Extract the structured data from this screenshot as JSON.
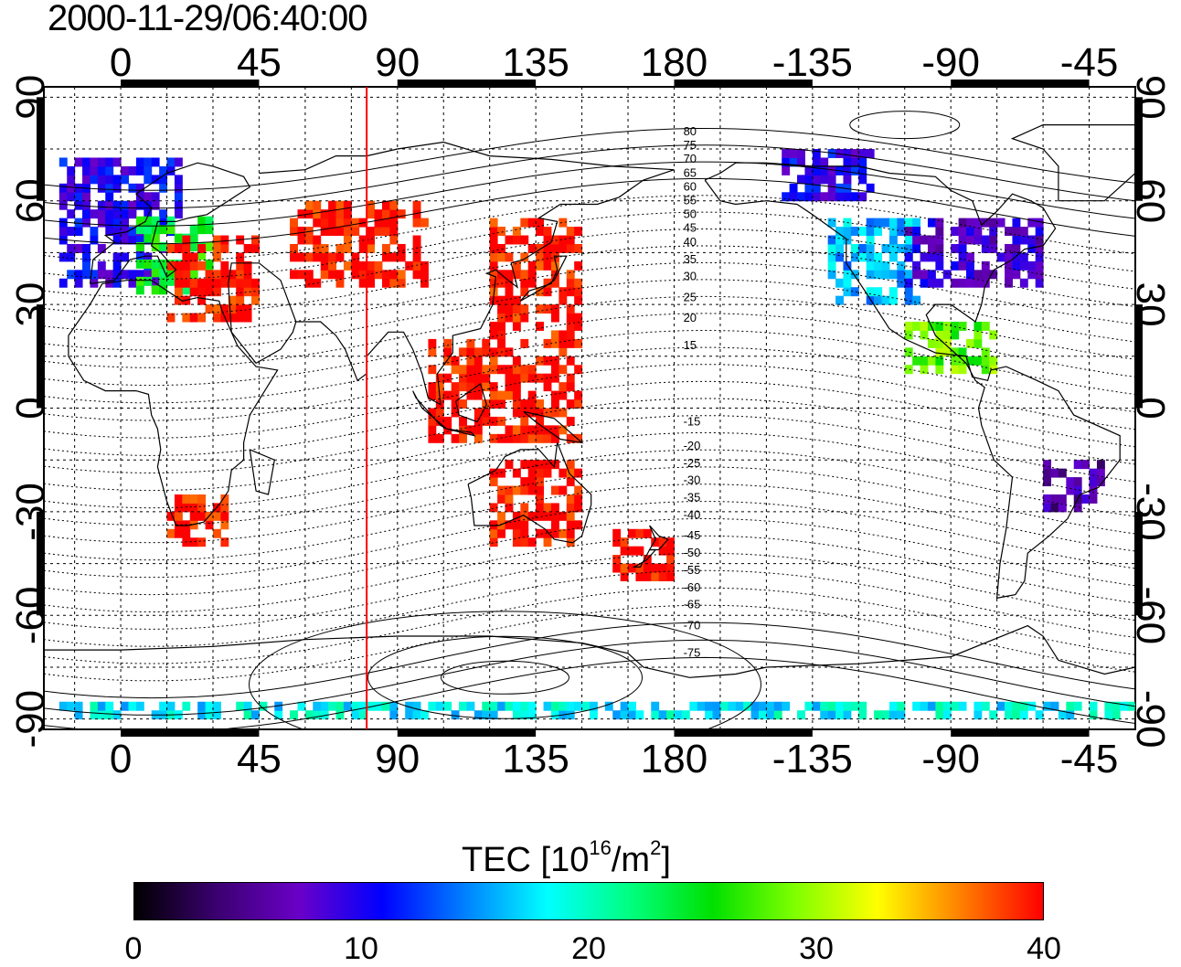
{
  "title": "2000-11-29/06:40:00",
  "map": {
    "x_axis": {
      "top_labels": [
        "0",
        "45",
        "90",
        "135",
        "180",
        "-135",
        "-90",
        "-45"
      ],
      "bottom_labels": [
        "0",
        "45",
        "90",
        "135",
        "180",
        "-135",
        "-90",
        "-45"
      ],
      "values": [
        0,
        45,
        90,
        135,
        180,
        225,
        270,
        315
      ]
    },
    "y_axis": {
      "left_labels": [
        "90",
        "60",
        "30",
        "0",
        "-30",
        "-60",
        "-90"
      ],
      "right_labels": [
        "90",
        "60",
        "30",
        "0",
        "-30",
        "-60",
        "-90"
      ],
      "values": [
        90,
        60,
        30,
        0,
        -30,
        -60,
        -90
      ]
    },
    "lon_range": [
      -25,
      330
    ],
    "lat_range": [
      -93,
      93
    ],
    "gridlines": true,
    "marker_line_longitude": 80,
    "marker_line_color": "#ff0000",
    "contour_labels": [
      "80",
      "75",
      "70",
      "65",
      "60",
      "55",
      "50",
      "45",
      "40",
      "35",
      "30",
      "25",
      "20",
      "15",
      "-15",
      "-20",
      "-25",
      "-30",
      "-35",
      "-40",
      "-45",
      "-50",
      "-55",
      "-60",
      "-65",
      "-70",
      "-75"
    ]
  },
  "colorbar": {
    "title_prefix": "TEC  [10",
    "title_exp1": "16",
    "title_mid": "/m",
    "title_exp2": "2",
    "title_suffix": "]",
    "min": 0,
    "max": 40,
    "tick_labels": [
      "0",
      "10",
      "20",
      "30",
      "40"
    ],
    "colors": [
      "#000000",
      "#3b0070",
      "#6a00c8",
      "#0000ff",
      "#0080ff",
      "#00ffff",
      "#00ff80",
      "#00e000",
      "#80ff00",
      "#ffff00",
      "#ff8000",
      "#ff0000"
    ]
  },
  "chart_data": {
    "type": "heatmap",
    "title": "2000-11-29/06:40:00",
    "xlabel": "",
    "ylabel": "",
    "xlim": [
      -25,
      330
    ],
    "ylim": [
      -93,
      93
    ],
    "value_label": "TEC  [10^16/m^2]",
    "value_range": [
      0,
      40
    ],
    "regions": [
      {
        "lon": [
          -20,
          20
        ],
        "lat": [
          35,
          72
        ],
        "tec": 10
      },
      {
        "lon": [
          5,
          30
        ],
        "lat": [
          33,
          55
        ],
        "tec": 25
      },
      {
        "lon": [
          15,
          45
        ],
        "lat": [
          25,
          50
        ],
        "tec": 40
      },
      {
        "lon": [
          55,
          100
        ],
        "lat": [
          35,
          60
        ],
        "tec": 40
      },
      {
        "lon": [
          120,
          150
        ],
        "lat": [
          20,
          55
        ],
        "tec": 40
      },
      {
        "lon": [
          100,
          150
        ],
        "lat": [
          -10,
          20
        ],
        "tec": 40
      },
      {
        "lon": [
          15,
          35
        ],
        "lat": [
          -40,
          -25
        ],
        "tec": 40
      },
      {
        "lon": [
          120,
          150
        ],
        "lat": [
          -40,
          -15
        ],
        "tec": 40
      },
      {
        "lon": [
          160,
          180
        ],
        "lat": [
          -50,
          -35
        ],
        "tec": 40
      },
      {
        "lon": [
          215,
          245
        ],
        "lat": [
          60,
          75
        ],
        "tec": 10
      },
      {
        "lon": [
          230,
          260
        ],
        "lat": [
          30,
          55
        ],
        "tec": 16
      },
      {
        "lon": [
          255,
          300
        ],
        "lat": [
          35,
          55
        ],
        "tec": 8
      },
      {
        "lon": [
          255,
          285
        ],
        "lat": [
          10,
          25
        ],
        "tec": 28
      },
      {
        "lon": [
          300,
          320
        ],
        "lat": [
          -30,
          -15
        ],
        "tec": 6
      },
      {
        "lon": [
          -20,
          330
        ],
        "lat": [
          -90,
          -85
        ],
        "tec": 18
      }
    ]
  }
}
